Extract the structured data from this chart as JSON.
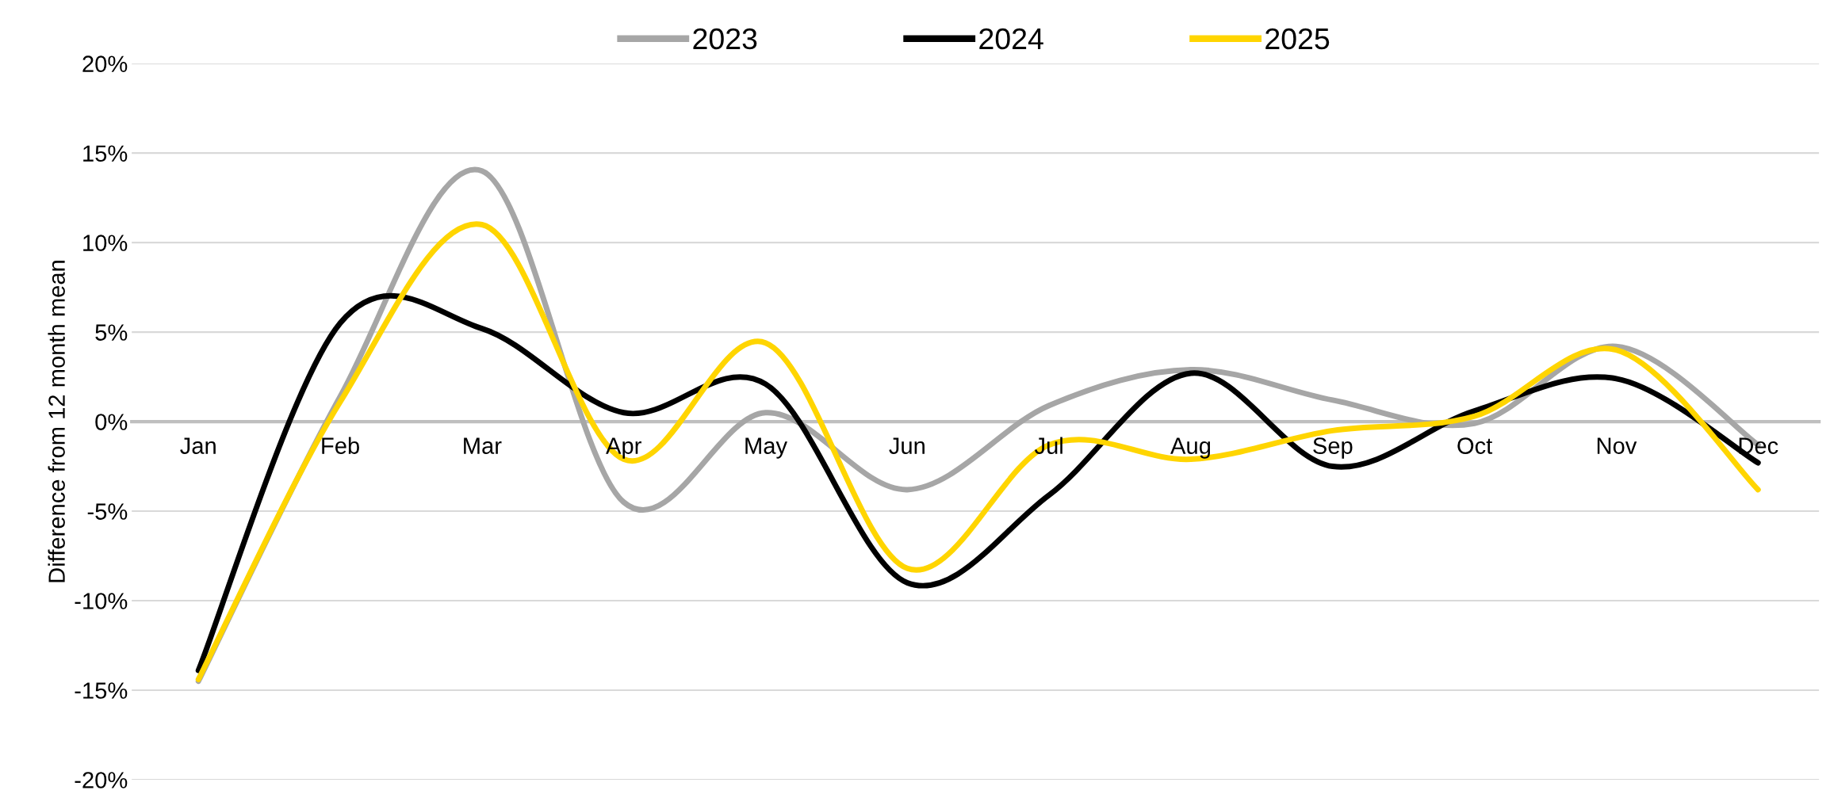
{
  "chart_data": {
    "type": "line",
    "ylabel": "Difference from 12 month mean",
    "categories": [
      "Jan",
      "Feb",
      "Mar",
      "Apr",
      "May",
      "Jun",
      "Jul",
      "Aug",
      "Sep",
      "Oct",
      "Nov",
      "Dec"
    ],
    "series": [
      {
        "name": "2023",
        "color": "#a6a6a6",
        "values": [
          -14.5,
          1.4,
          14,
          -4.5,
          0.5,
          -3.8,
          0.9,
          2.9,
          1.2,
          -0.1,
          4.2,
          -1.3
        ]
      },
      {
        "name": "2024",
        "color": "#000000",
        "values": [
          -13.9,
          5.5,
          5.2,
          0.5,
          2.1,
          -9,
          -4.1,
          2.7,
          -2.5,
          0.6,
          2.4,
          -2.3
        ]
      },
      {
        "name": "2025",
        "color": "#ffd500",
        "values": [
          -14.4,
          1.1,
          11,
          -2.1,
          4.4,
          -8.2,
          -1.3,
          -2.1,
          -0.5,
          0.3,
          4,
          -3.8
        ]
      }
    ],
    "ylim": [
      -20,
      20
    ],
    "yticks": [
      {
        "value": -20,
        "label": "-20%"
      },
      {
        "value": -15,
        "label": "-15%"
      },
      {
        "value": -10,
        "label": "-10%"
      },
      {
        "value": -5,
        "label": "-5%"
      },
      {
        "value": 0,
        "label": "0%"
      },
      {
        "value": 5,
        "label": "5%"
      },
      {
        "value": 10,
        "label": "10%"
      },
      {
        "value": 15,
        "label": "15%"
      },
      {
        "value": 20,
        "label": "20%"
      }
    ],
    "grid": "y",
    "legend": "top",
    "marker": "none",
    "line_style": "solid"
  }
}
